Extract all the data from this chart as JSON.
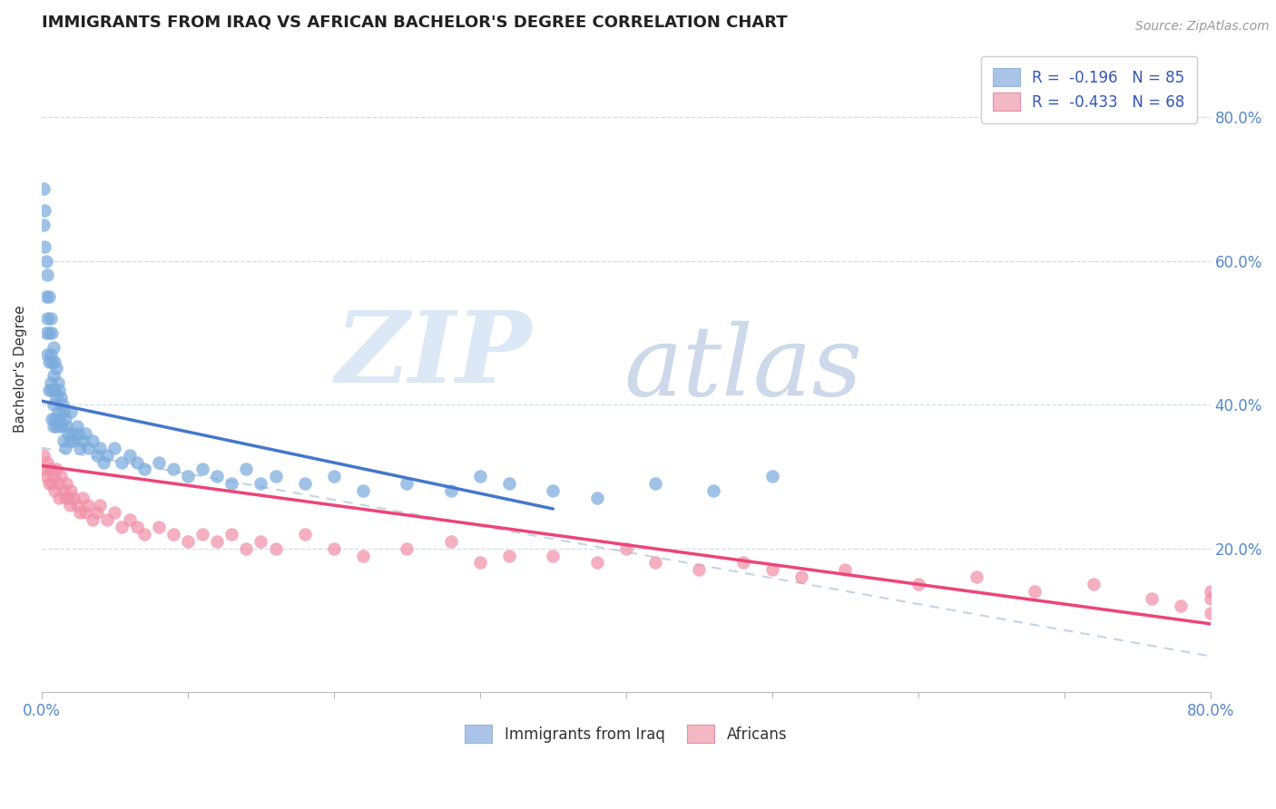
{
  "title": "IMMIGRANTS FROM IRAQ VS AFRICAN BACHELOR'S DEGREE CORRELATION CHART",
  "source": "Source: ZipAtlas.com",
  "ylabel": "Bachelor's Degree",
  "legend1_label": "R =  -0.196   N = 85",
  "legend2_label": "R =  -0.433   N = 68",
  "legend1_color": "#aac4e8",
  "legend2_color": "#f4b8c4",
  "dot_color_iraq": "#7aabdd",
  "dot_color_african": "#f090a8",
  "trend_color_iraq": "#4477cc",
  "trend_color_african": "#ee4477",
  "trend_color_combined": "#bbccdd",
  "background_color": "#ffffff",
  "iraq_x": [
    0.001,
    0.001,
    0.002,
    0.002,
    0.003,
    0.003,
    0.003,
    0.004,
    0.004,
    0.004,
    0.005,
    0.005,
    0.005,
    0.005,
    0.006,
    0.006,
    0.006,
    0.007,
    0.007,
    0.007,
    0.007,
    0.008,
    0.008,
    0.008,
    0.008,
    0.009,
    0.009,
    0.009,
    0.01,
    0.01,
    0.01,
    0.011,
    0.011,
    0.012,
    0.012,
    0.013,
    0.013,
    0.014,
    0.015,
    0.015,
    0.016,
    0.016,
    0.017,
    0.018,
    0.019,
    0.02,
    0.021,
    0.022,
    0.024,
    0.025,
    0.026,
    0.028,
    0.03,
    0.032,
    0.035,
    0.038,
    0.04,
    0.042,
    0.045,
    0.05,
    0.055,
    0.06,
    0.065,
    0.07,
    0.08,
    0.09,
    0.1,
    0.11,
    0.12,
    0.13,
    0.14,
    0.15,
    0.16,
    0.18,
    0.2,
    0.22,
    0.25,
    0.28,
    0.3,
    0.32,
    0.35,
    0.38,
    0.42,
    0.46,
    0.5
  ],
  "iraq_y": [
    0.7,
    0.65,
    0.67,
    0.62,
    0.6,
    0.55,
    0.5,
    0.58,
    0.52,
    0.47,
    0.55,
    0.5,
    0.46,
    0.42,
    0.52,
    0.47,
    0.43,
    0.5,
    0.46,
    0.42,
    0.38,
    0.48,
    0.44,
    0.4,
    0.37,
    0.46,
    0.42,
    0.38,
    0.45,
    0.41,
    0.37,
    0.43,
    0.39,
    0.42,
    0.38,
    0.41,
    0.37,
    0.4,
    0.39,
    0.35,
    0.38,
    0.34,
    0.37,
    0.36,
    0.35,
    0.39,
    0.36,
    0.35,
    0.37,
    0.36,
    0.34,
    0.35,
    0.36,
    0.34,
    0.35,
    0.33,
    0.34,
    0.32,
    0.33,
    0.34,
    0.32,
    0.33,
    0.32,
    0.31,
    0.32,
    0.31,
    0.3,
    0.31,
    0.3,
    0.29,
    0.31,
    0.29,
    0.3,
    0.29,
    0.3,
    0.28,
    0.29,
    0.28,
    0.3,
    0.29,
    0.28,
    0.27,
    0.29,
    0.28,
    0.3
  ],
  "african_x": [
    0.001,
    0.002,
    0.003,
    0.004,
    0.005,
    0.006,
    0.007,
    0.008,
    0.009,
    0.01,
    0.011,
    0.012,
    0.013,
    0.015,
    0.016,
    0.017,
    0.018,
    0.019,
    0.02,
    0.022,
    0.024,
    0.026,
    0.028,
    0.03,
    0.032,
    0.035,
    0.038,
    0.04,
    0.045,
    0.05,
    0.055,
    0.06,
    0.065,
    0.07,
    0.08,
    0.09,
    0.1,
    0.11,
    0.12,
    0.13,
    0.14,
    0.15,
    0.16,
    0.18,
    0.2,
    0.22,
    0.25,
    0.28,
    0.3,
    0.32,
    0.35,
    0.38,
    0.4,
    0.42,
    0.45,
    0.48,
    0.5,
    0.52,
    0.55,
    0.6,
    0.64,
    0.68,
    0.72,
    0.76,
    0.78,
    0.8,
    0.8,
    0.8
  ],
  "african_y": [
    0.33,
    0.31,
    0.3,
    0.32,
    0.29,
    0.31,
    0.29,
    0.3,
    0.28,
    0.31,
    0.29,
    0.27,
    0.3,
    0.28,
    0.27,
    0.29,
    0.27,
    0.26,
    0.28,
    0.27,
    0.26,
    0.25,
    0.27,
    0.25,
    0.26,
    0.24,
    0.25,
    0.26,
    0.24,
    0.25,
    0.23,
    0.24,
    0.23,
    0.22,
    0.23,
    0.22,
    0.21,
    0.22,
    0.21,
    0.22,
    0.2,
    0.21,
    0.2,
    0.22,
    0.2,
    0.19,
    0.2,
    0.21,
    0.18,
    0.19,
    0.19,
    0.18,
    0.2,
    0.18,
    0.17,
    0.18,
    0.17,
    0.16,
    0.17,
    0.15,
    0.16,
    0.14,
    0.15,
    0.13,
    0.12,
    0.14,
    0.13,
    0.11
  ],
  "iraq_trend_x0": 0.0,
  "iraq_trend_y0": 0.405,
  "iraq_trend_x1": 0.35,
  "iraq_trend_y1": 0.255,
  "african_trend_x0": 0.0,
  "african_trend_y0": 0.315,
  "african_trend_x1": 0.8,
  "african_trend_y1": 0.095,
  "combined_trend_x0": 0.0,
  "combined_trend_y0": 0.34,
  "combined_trend_x1": 0.8,
  "combined_trend_y1": 0.05,
  "xlim": [
    0.0,
    0.8
  ],
  "ylim": [
    0.0,
    0.9
  ],
  "xtick_positions": [
    0.0,
    0.1,
    0.2,
    0.3,
    0.4,
    0.5,
    0.6,
    0.7,
    0.8
  ],
  "ytick_positions": [
    0.2,
    0.4,
    0.6,
    0.8
  ]
}
